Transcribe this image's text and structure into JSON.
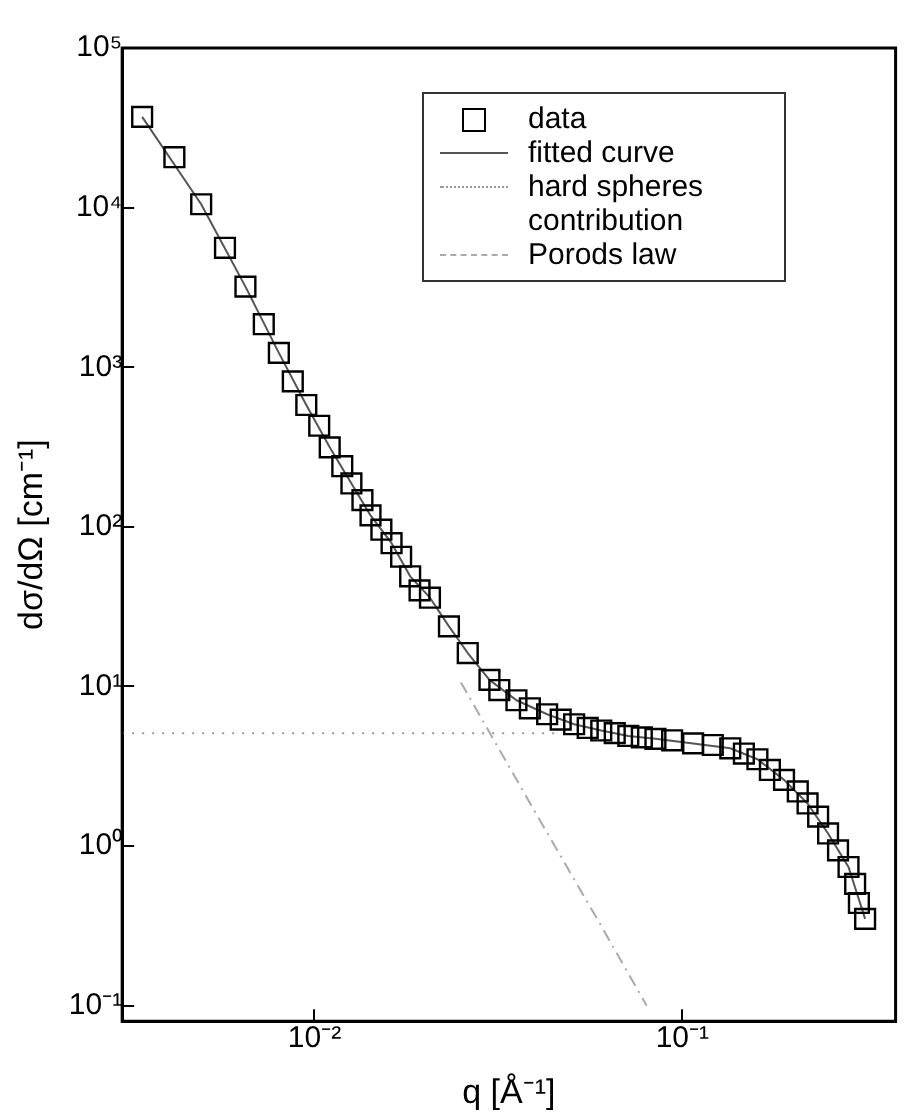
{
  "chart_data": {
    "type": "scatter",
    "xlabel": "q [Å⁻¹]",
    "ylabel": "dσ/dΩ [cm⁻¹]",
    "log": "xy",
    "grid": false,
    "legend": "top right",
    "xlim": [
      0.003,
      0.38
    ],
    "ylim": [
      0.08,
      100000
    ],
    "xticks": [
      {
        "value": 0.01,
        "label": "10⁻²"
      },
      {
        "value": 0.1,
        "label": "10⁻¹"
      }
    ],
    "yticks": [
      {
        "value": 0.1,
        "label": "10⁻¹"
      },
      {
        "value": 1,
        "label": "10⁰"
      },
      {
        "value": 10,
        "label": "10¹"
      },
      {
        "value": 100,
        "label": "10²"
      },
      {
        "value": 1000,
        "label": "10³"
      },
      {
        "value": 10000,
        "label": "10⁴"
      },
      {
        "value": 100000,
        "label": "10⁵"
      }
    ],
    "series": [
      {
        "name": "data",
        "marker": "square",
        "color": "#000000",
        "x": [
          0.0034,
          0.00416,
          0.00492,
          0.00571,
          0.00649,
          0.00728,
          0.008,
          0.00873,
          0.0095,
          0.0103,
          0.011,
          0.0119,
          0.0126,
          0.0135,
          0.0142,
          0.0152,
          0.0162,
          0.0172,
          0.0182,
          0.0193,
          0.0206,
          0.0232,
          0.0261,
          0.0299,
          0.0318,
          0.0354,
          0.0385,
          0.0429,
          0.0467,
          0.0508,
          0.0553,
          0.0602,
          0.0655,
          0.0713,
          0.0776,
          0.0845,
          0.0938,
          0.107,
          0.121,
          0.135,
          0.147,
          0.16,
          0.173,
          0.189,
          0.206,
          0.219,
          0.234,
          0.249,
          0.265,
          0.283,
          0.295,
          0.302,
          0.314
        ],
        "values": [
          37000,
          20700,
          10500,
          5600,
          3200,
          1860,
          1230,
          815,
          580,
          430,
          315,
          240,
          187,
          147,
          118,
          96,
          79,
          65,
          49,
          40,
          36,
          23.8,
          16.2,
          11,
          9.5,
          8.2,
          7.3,
          6.7,
          6.2,
          5.8,
          5.5,
          5.3,
          5.1,
          4.9,
          4.8,
          4.7,
          4.6,
          4.4,
          4.3,
          4.1,
          3.8,
          3.5,
          3,
          2.6,
          2.2,
          1.85,
          1.53,
          1.2,
          0.94,
          0.74,
          0.58,
          0.44,
          0.35
        ]
      },
      {
        "name": "fitted curve",
        "type": "line",
        "marker": "none",
        "line_style": "solid",
        "color": "#555555",
        "x": [
          0.0034,
          0.00492,
          0.00649,
          0.008,
          0.0095,
          0.011,
          0.0126,
          0.0142,
          0.0162,
          0.0182,
          0.0206,
          0.0232,
          0.0261,
          0.0299,
          0.0354,
          0.0429,
          0.0508,
          0.0602,
          0.0713,
          0.0845,
          0.107,
          0.135,
          0.16,
          0.189,
          0.219,
          0.249,
          0.283,
          0.314
        ],
        "values": [
          37000,
          10500,
          3200,
          1230,
          580,
          315,
          187,
          118,
          79,
          49,
          36,
          23.8,
          16.2,
          11,
          8.2,
          6.7,
          5.8,
          5.3,
          4.9,
          4.7,
          4.4,
          4.1,
          3.5,
          2.6,
          1.85,
          1.2,
          0.74,
          0.35
        ]
      },
      {
        "name": "hard spheres contribution",
        "type": "line",
        "marker": "none",
        "line_style": "dotted",
        "color": "#999999",
        "x": [
          0.003,
          0.01,
          0.02,
          0.03,
          0.045
        ],
        "values": [
          5.1,
          5.1,
          5.1,
          5.1,
          5.1
        ]
      },
      {
        "name": "Porods law",
        "type": "line",
        "marker": "none",
        "line_style": "dashed",
        "color": "#aaaaaa",
        "x": [
          0.025,
          0.04,
          0.06,
          0.08
        ],
        "values": [
          10.6,
          1.6,
          0.32,
          0.1
        ]
      }
    ]
  }
}
